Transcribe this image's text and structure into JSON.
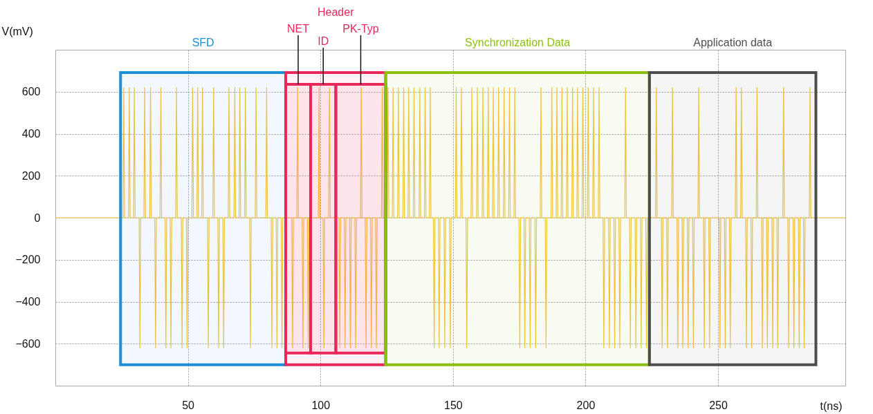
{
  "chart_data": {
    "type": "line",
    "xlabel": "t(ns)",
    "ylabel": "V(mV)",
    "xlim": [
      0,
      298
    ],
    "ylim": [
      -800,
      800
    ],
    "xticks": [
      50,
      100,
      150,
      200,
      250
    ],
    "yticks": [
      -600,
      -400,
      -200,
      0,
      200,
      400,
      600
    ],
    "grid": true,
    "series": [
      {
        "color": "#f5c53a",
        "x": [
          0,
          25.5,
          25.8,
          26.1,
          27.6,
          27.9,
          28.2,
          29.5,
          29.8,
          30.1,
          31.6,
          31.9,
          32.2,
          33.4,
          33.7,
          34.0,
          35.6,
          35.9,
          36.2,
          37.5,
          37.8,
          38.1,
          39.5,
          39.8,
          40.1,
          41.4,
          41.7,
          42.0,
          43.3,
          43.6,
          43.9,
          45.4,
          45.7,
          46.0,
          47.5,
          47.8,
          48.1,
          49.4,
          49.7,
          50.0,
          51.5,
          51.8,
          52.1,
          53.4,
          53.7,
          54.0,
          55.2,
          55.5,
          55.8,
          57.4,
          57.7,
          58.0,
          59.4,
          59.7,
          60.0,
          61.3,
          61.6,
          61.9,
          63.2,
          63.5,
          63.8,
          65.2,
          65.5,
          65.8,
          67.4,
          67.7,
          68.0,
          69.3,
          69.6,
          69.9,
          71.4,
          71.7,
          72.0,
          73.3,
          73.6,
          73.9,
          75.4,
          75.7,
          76.0,
          79.4,
          79.7,
          80.0,
          81.4,
          81.7,
          82.0,
          83.3,
          83.6,
          83.9,
          85.2,
          85.5,
          85.8,
          89.2,
          89.5,
          89.8,
          91.1,
          91.4,
          91.7,
          93.1,
          93.4,
          93.7,
          95.1,
          95.4,
          95.7,
          99.2,
          99.5,
          99.8,
          101.0,
          101.3,
          101.6,
          103.1,
          103.4,
          103.7,
          107.0,
          107.3,
          107.6,
          109.0,
          109.3,
          109.6,
          111.0,
          111.3,
          111.6,
          113.0,
          113.3,
          113.6,
          115.1,
          115.4,
          115.7,
          116.9,
          117.2,
          117.5,
          118.9,
          119.2,
          119.5,
          120.8,
          121.1,
          121.4,
          123.0,
          123.3,
          123.6,
          125.2,
          125.5,
          125.8,
          127.1,
          127.4,
          127.7,
          129.1,
          129.4,
          129.7,
          131.1,
          131.4,
          131.7,
          133.0,
          133.3,
          133.6,
          135.0,
          135.3,
          135.6,
          137.2,
          137.5,
          137.8,
          139.2,
          139.5,
          139.8,
          141.1,
          141.4,
          141.7,
          142.6,
          142.9,
          143.2,
          144.5,
          144.8,
          145.1,
          146.6,
          146.9,
          147.2,
          148.7,
          149.0,
          149.3,
          150.9,
          151.2,
          151.5,
          152.9,
          153.2,
          153.5,
          154.9,
          155.2,
          155.5,
          156.8,
          157.1,
          157.4,
          158.9,
          159.2,
          159.5,
          161.0,
          161.3,
          161.6,
          163.0,
          163.3,
          163.6,
          164.9,
          165.2,
          165.5,
          166.9,
          167.2,
          167.5,
          169.0,
          169.3,
          169.6,
          171.0,
          171.3,
          171.6,
          173.0,
          173.3,
          173.6,
          174.9,
          175.2,
          175.5,
          176.8,
          177.1,
          177.4,
          178.8,
          179.1,
          179.4,
          180.9,
          181.2,
          181.5,
          182.9,
          183.2,
          183.5,
          184.8,
          185.1,
          185.4,
          187.0,
          187.3,
          187.6,
          188.9,
          189.2,
          189.5,
          190.8,
          191.1,
          191.4,
          192.8,
          193.1,
          193.4,
          194.8,
          195.1,
          195.4,
          196.7,
          197.0,
          197.3,
          198.7,
          199.0,
          199.3,
          200.7,
          201.0,
          201.3,
          202.7,
          203.0,
          203.3,
          204.8,
          205.1,
          205.4,
          206.6,
          206.9,
          207.2,
          208.7,
          209.0,
          209.3,
          210.7,
          211.0,
          211.3,
          212.6,
          212.9,
          213.2,
          214.8,
          215.1,
          215.4,
          216.6,
          216.9,
          217.2,
          218.7,
          219.0,
          219.3,
          220.7,
          221.0,
          221.3,
          222.7,
          223.0,
          223.3,
          226.4,
          226.7,
          227.0,
          228.6,
          228.9,
          229.2,
          230.6,
          230.9,
          231.2,
          232.5,
          232.8,
          233.1,
          234.5,
          234.8,
          235.1,
          236.4,
          236.7,
          237.0,
          238.4,
          238.7,
          239.0,
          240.4,
          240.7,
          241.0,
          242.4,
          242.7,
          243.0,
          244.5,
          244.8,
          245.1,
          246.5,
          246.8,
          247.1,
          250.4,
          250.7,
          251.0,
          252.4,
          252.7,
          253.0,
          254.3,
          254.6,
          254.9,
          256.5,
          256.8,
          257.1,
          258.5,
          258.8,
          259.1,
          260.4,
          260.7,
          261.0,
          262.4,
          262.7,
          263.0,
          264.4,
          264.7,
          265.0,
          266.4,
          266.7,
          267.0,
          268.3,
          268.6,
          268.9,
          270.3,
          270.6,
          270.9,
          272.2,
          272.5,
          272.8,
          274.4,
          274.7,
          275.0,
          276.3,
          276.6,
          276.9,
          278.3,
          278.6,
          278.9,
          280.3,
          280.6,
          280.9,
          282.2,
          282.5,
          282.8,
          284.4,
          284.7,
          285.0,
          298
        ],
        "values": [
          0,
          0,
          620,
          0,
          0,
          620,
          0,
          0,
          620,
          0,
          0,
          -620,
          0,
          0,
          620,
          0,
          0,
          620,
          0,
          0,
          -620,
          0,
          0,
          620,
          0,
          0,
          -620,
          0,
          0,
          -620,
          0,
          0,
          620,
          0,
          0,
          -620,
          0,
          0,
          -620,
          0,
          0,
          620,
          0,
          0,
          620,
          0,
          0,
          620,
          0,
          0,
          -620,
          0,
          0,
          620,
          0,
          0,
          -620,
          0,
          0,
          -620,
          0,
          0,
          620,
          0,
          0,
          620,
          0,
          0,
          620,
          0,
          0,
          620,
          0,
          0,
          -620,
          0,
          0,
          620,
          0,
          0,
          620,
          0,
          0,
          -620,
          0,
          0,
          -620,
          0,
          0,
          -620,
          0,
          0,
          -620,
          0,
          0,
          620,
          0,
          0,
          -620,
          0,
          0,
          -620,
          0,
          0,
          620,
          0,
          0,
          -620,
          0,
          0,
          620,
          0,
          0,
          -620,
          0,
          0,
          -620,
          0,
          0,
          -620,
          0,
          0,
          -620,
          0,
          0,
          620,
          0,
          0,
          -620,
          0,
          0,
          -620,
          0,
          0,
          -620,
          0,
          0,
          620,
          0,
          0,
          620,
          0,
          0,
          620,
          0,
          0,
          620,
          0,
          0,
          620,
          0,
          0,
          620,
          0,
          0,
          620,
          0,
          0,
          620,
          0,
          0,
          620,
          0,
          0,
          620,
          0,
          0,
          -620,
          0,
          0,
          -620,
          0,
          0,
          -620,
          0,
          0,
          -620,
          0,
          0,
          620,
          0,
          0,
          620,
          0,
          0,
          -620,
          0,
          0,
          620,
          0,
          0,
          620,
          0,
          0,
          620,
          0,
          0,
          620,
          0,
          0,
          620,
          0,
          0,
          620,
          0,
          0,
          620,
          0,
          0,
          620,
          0,
          0,
          620,
          0,
          0,
          -620,
          0,
          0,
          -620,
          0,
          0,
          -620,
          0,
          0,
          -620,
          0,
          0,
          620,
          0,
          0,
          -620,
          0,
          0,
          620,
          0,
          0,
          620,
          0,
          0,
          620,
          0,
          0,
          620,
          0,
          0,
          620,
          0,
          0,
          620,
          0,
          0,
          620,
          0,
          0,
          620,
          0,
          0,
          620,
          0,
          0,
          620,
          0,
          0,
          -620,
          0,
          0,
          -620,
          0,
          0,
          -620,
          0,
          0,
          -620,
          0,
          0,
          620,
          0,
          0,
          -620,
          0,
          0,
          -620,
          0,
          0,
          -620,
          0,
          0,
          -620,
          0,
          0,
          620,
          0,
          0,
          -620,
          0,
          0,
          -620,
          0,
          0,
          620,
          0,
          0,
          -620,
          0,
          0,
          -620,
          0,
          0,
          -620,
          0,
          0,
          -620,
          0,
          0,
          620,
          0,
          0,
          -620,
          0,
          0,
          -620,
          0,
          0,
          -620,
          0,
          0,
          -620,
          0,
          0,
          -620,
          0,
          0,
          620,
          0,
          0,
          620,
          0,
          0,
          -620,
          0,
          0,
          -620,
          0,
          0,
          620,
          0,
          0,
          -620,
          0,
          0,
          -620,
          0,
          0,
          -620,
          0,
          0,
          -620,
          0,
          0,
          620,
          0,
          0,
          -620,
          0,
          0,
          -620,
          0,
          0,
          -620,
          0,
          0,
          -620,
          0,
          0,
          620,
          0,
          0
        ]
      }
    ],
    "bands": [
      {
        "axis": "x",
        "from": 24.6,
        "to": 86.9,
        "label": "SFD",
        "color": "#1a8fd6"
      },
      {
        "axis": "x",
        "from": 86.9,
        "to": 124.6,
        "label": "Header",
        "color": "#e8285a"
      },
      {
        "axis": "x",
        "from": 86.9,
        "to": 96.3,
        "label": "NET",
        "color": "#e8285a"
      },
      {
        "axis": "x",
        "from": 96.3,
        "to": 105.8,
        "label": "ID",
        "color": "#e8285a"
      },
      {
        "axis": "x",
        "from": 105.8,
        "to": 124.6,
        "label": "PK-Typ",
        "color": "#e8285a"
      },
      {
        "axis": "x",
        "from": 124.6,
        "to": 224.1,
        "label": "Synchronization Data",
        "color": "#8cc00f"
      },
      {
        "axis": "x",
        "from": 224.1,
        "to": 286.9,
        "label": "Application data",
        "color": "#4d4d4d"
      }
    ]
  }
}
